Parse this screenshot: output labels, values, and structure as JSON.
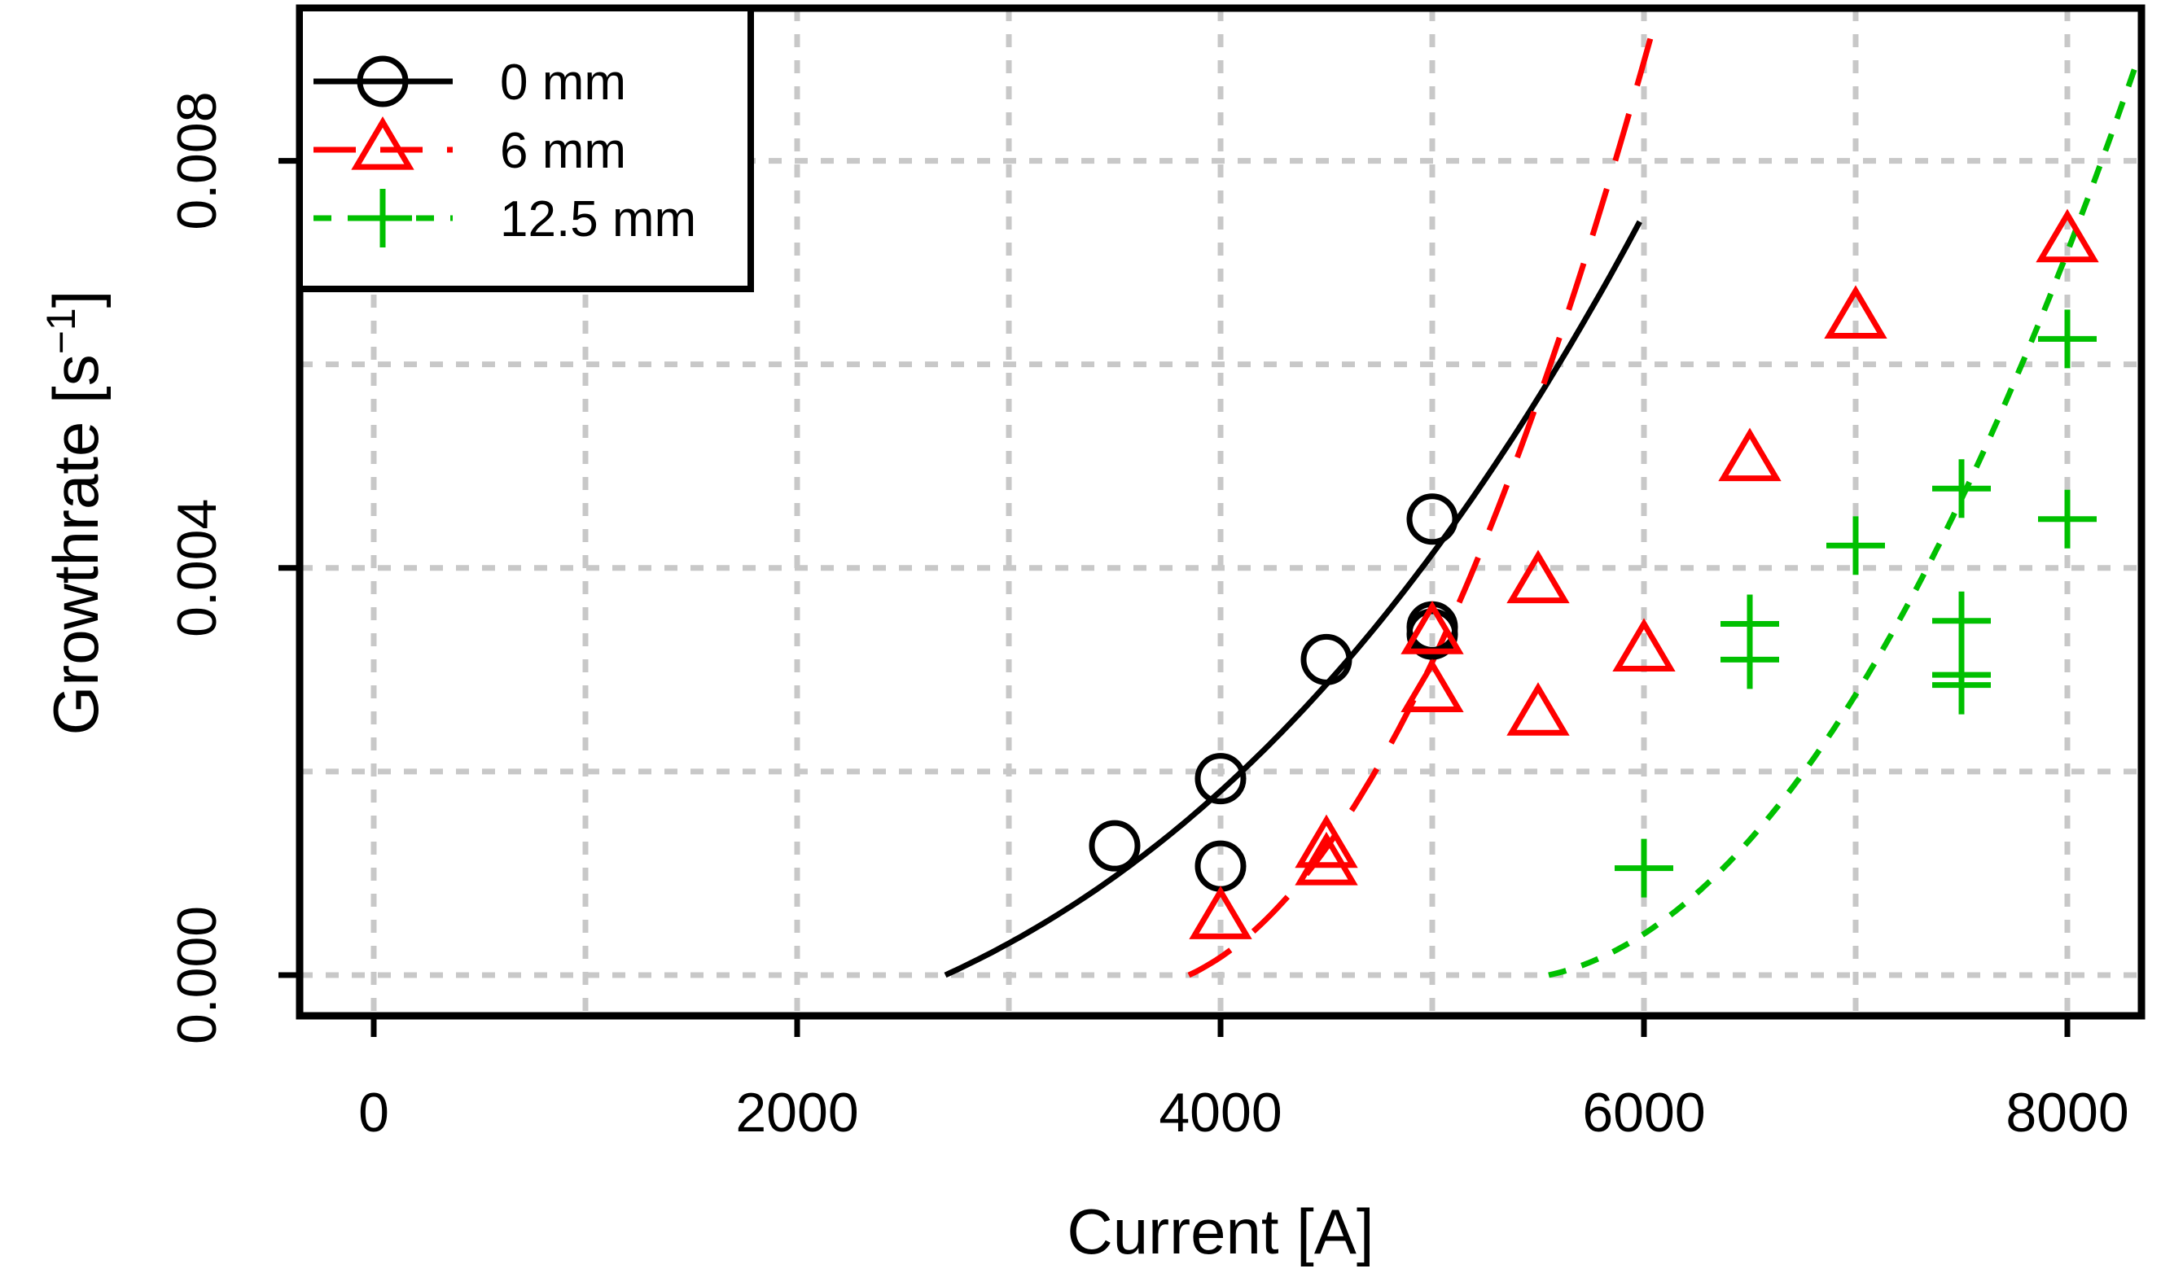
{
  "chart_data": {
    "type": "scatter",
    "title": "",
    "xlabel": "Current [A]",
    "ylabel_main": "Growthrate [s",
    "ylabel_sup": "−1",
    "ylabel_close": "]",
    "xlim": [
      -350,
      8350
    ],
    "ylim": [
      -0.0004,
      0.0095
    ],
    "xticks": [
      0,
      2000,
      4000,
      6000,
      8000
    ],
    "xtick_labels": [
      "0",
      "2000",
      "4000",
      "6000",
      "8000"
    ],
    "yticks": [
      0.0,
      0.004,
      0.008
    ],
    "ytick_labels": [
      "0.000",
      "0.004",
      "0.008"
    ],
    "grid_x": [
      0,
      1000,
      2000,
      3000,
      4000,
      5000,
      6000,
      7000,
      8000
    ],
    "grid_y": [
      0.0,
      0.002,
      0.004,
      0.006,
      0.008
    ],
    "grid": true,
    "legend_position": "top-left",
    "series": [
      {
        "name": "0 mm",
        "marker": "circle",
        "line_style": "solid",
        "color": "#000000",
        "points": [
          {
            "x": 3500,
            "y": 0.00127
          },
          {
            "x": 4000,
            "y": 0.00193
          },
          {
            "x": 4000,
            "y": 0.00107
          },
          {
            "x": 4500,
            "y": 0.0031
          },
          {
            "x": 5000,
            "y": 0.00448
          },
          {
            "x": 5000,
            "y": 0.00342
          },
          {
            "x": 5000,
            "y": 0.00335
          }
        ],
        "fit": {
          "x0": 2700,
          "x1": 5980,
          "a": 3e-05,
          "b": 0.0003,
          "c": 0.00095
        }
      },
      {
        "name": "6 mm",
        "marker": "triangle",
        "line_style": "dashed",
        "color": "#ff0000",
        "points": [
          {
            "x": 4000,
            "y": 0.00055
          },
          {
            "x": 4500,
            "y": 0.00125
          },
          {
            "x": 4500,
            "y": 0.00108
          },
          {
            "x": 5000,
            "y": 0.00335
          },
          {
            "x": 5000,
            "y": 0.00278
          },
          {
            "x": 5500,
            "y": 0.00385
          },
          {
            "x": 5500,
            "y": 0.00255
          },
          {
            "x": 6000,
            "y": 0.00318
          },
          {
            "x": 6500,
            "y": 0.00505
          },
          {
            "x": 7000,
            "y": 0.00645
          },
          {
            "x": 8000,
            "y": 0.0072
          }
        ],
        "fit": {
          "x0": 3850,
          "x1": 6980,
          "a": 0.0,
          "b": 0.0015,
          "c": 0.00095
        }
      },
      {
        "name": "12.5 mm",
        "marker": "plus",
        "line_style": "dotted",
        "color": "#00c000",
        "points": [
          {
            "x": 6000,
            "y": 0.00105
          },
          {
            "x": 6500,
            "y": 0.00345
          },
          {
            "x": 6500,
            "y": 0.0031
          },
          {
            "x": 7000,
            "y": 0.00422
          },
          {
            "x": 7500,
            "y": 0.00478
          },
          {
            "x": 7500,
            "y": 0.00348
          },
          {
            "x": 7500,
            "y": 0.00295
          },
          {
            "x": 7500,
            "y": 0.00285
          },
          {
            "x": 8000,
            "y": 0.00625
          },
          {
            "x": 8000,
            "y": 0.00448
          }
        ],
        "fit": {
          "x0": 5550,
          "x1": 8330,
          "a": 0.0,
          "b": 0.001,
          "c": 0.00045
        }
      }
    ]
  }
}
